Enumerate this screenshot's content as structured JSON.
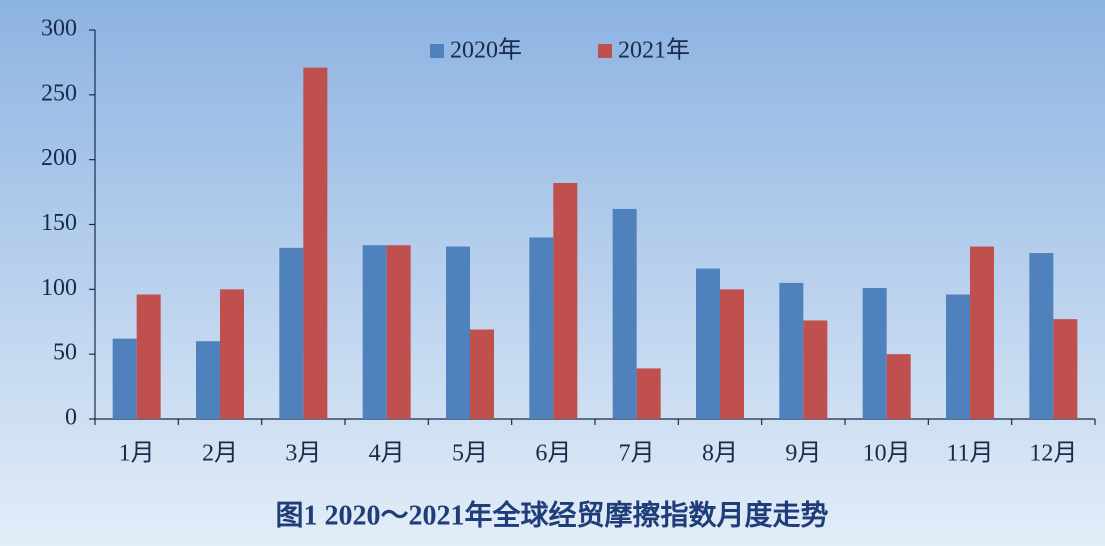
{
  "chart_data": {
    "type": "bar",
    "title": "图1  2020～2021年全球经贸摩擦指数月度走势",
    "categories": [
      "1月",
      "2月",
      "3月",
      "4月",
      "5月",
      "6月",
      "7月",
      "8月",
      "9月",
      "10月",
      "11月",
      "12月"
    ],
    "series": [
      {
        "name": "2020年",
        "color": "#4f81bd",
        "values": [
          62,
          60,
          132,
          134,
          133,
          140,
          162,
          116,
          105,
          101,
          96,
          128
        ]
      },
      {
        "name": "2021年",
        "color": "#c0504d",
        "values": [
          96,
          100,
          271,
          134,
          69,
          182,
          39,
          100,
          76,
          50,
          133,
          77
        ]
      }
    ],
    "ylim": [
      0,
      300
    ],
    "yticks": [
      0,
      50,
      100,
      150,
      200,
      250,
      300
    ],
    "grid": false,
    "legend": "top"
  }
}
